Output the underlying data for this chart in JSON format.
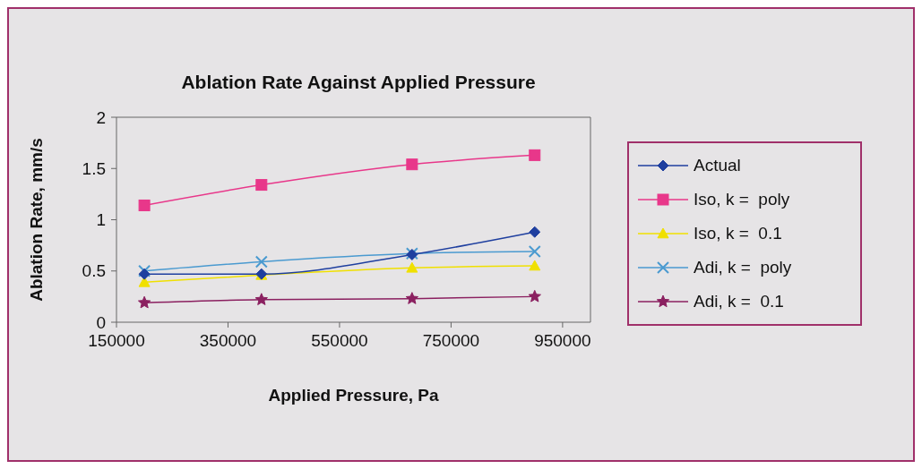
{
  "chart_data": {
    "type": "line",
    "title": "Ablation Rate Against Applied Pressure",
    "xlabel": "Applied Pressure, Pa",
    "ylabel": "Ablation Rate, mm/s",
    "x": [
      200000,
      410000,
      680000,
      900000
    ],
    "series": [
      {
        "name": "Actual",
        "color": "#1f3f9f",
        "marker": "diamond",
        "values": [
          0.47,
          0.47,
          0.66,
          0.88
        ]
      },
      {
        "name": "Iso, k =  poly",
        "color": "#e8378a",
        "marker": "square",
        "values": [
          1.14,
          1.34,
          1.54,
          1.63
        ]
      },
      {
        "name": "Iso, k =  0.1",
        "color": "#f0e000",
        "marker": "triangle",
        "values": [
          0.39,
          0.46,
          0.53,
          0.55
        ]
      },
      {
        "name": "Adi, k =  poly",
        "color": "#4a9ad0",
        "marker": "cross",
        "values": [
          0.5,
          0.59,
          0.67,
          0.69
        ]
      },
      {
        "name": "Adi, k =  0.1",
        "color": "#8b2060",
        "marker": "star",
        "values": [
          0.19,
          0.22,
          0.23,
          0.25
        ]
      }
    ],
    "xlim": [
      150000,
      1000000
    ],
    "xticks": [
      150000,
      350000,
      550000,
      750000,
      950000
    ],
    "ylim": [
      0,
      2
    ],
    "yticks": [
      0,
      0.5,
      1,
      1.5,
      2
    ],
    "grid": false,
    "legend": "right"
  }
}
